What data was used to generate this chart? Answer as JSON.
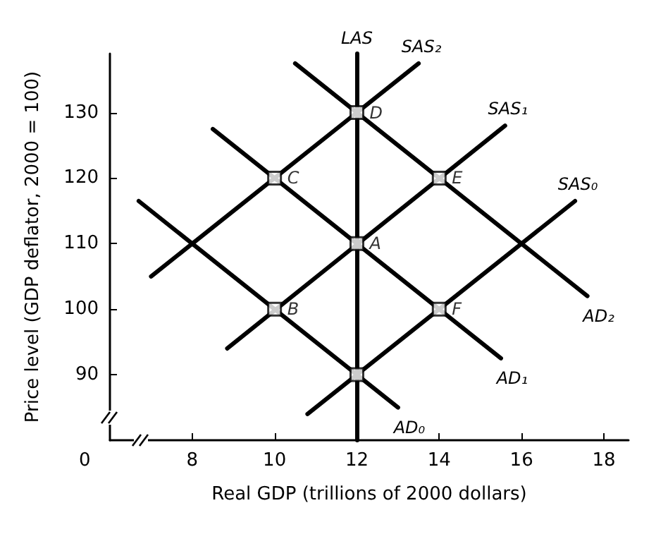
{
  "chart_data": {
    "type": "line",
    "xlabel": "Real GDP (trillions of 2000 dollars)",
    "ylabel": "Price level (GDP deflator, 2000 = 100)",
    "xlim": [
      6,
      18.6
    ],
    "xticks": [
      8,
      10,
      12,
      14,
      16,
      18
    ],
    "ylim": [
      80,
      139
    ],
    "yticks": [
      90,
      100,
      110,
      120,
      130
    ],
    "ref_lines": [
      {
        "axis": "x",
        "value": 12,
        "label": "LAS",
        "color": "#000000",
        "line_style": "solid"
      }
    ],
    "grid": false,
    "legend": false,
    "marker": "none",
    "line_style": "solid",
    "series": [
      {
        "name": "SAS₂",
        "color": "#000000",
        "x": [
          7,
          13.5
        ],
        "values": [
          105,
          137.5
        ]
      },
      {
        "name": "SAS₁",
        "color": "#000000",
        "x": [
          8.85,
          15.6
        ],
        "values": [
          94,
          128
        ]
      },
      {
        "name": "SAS₀",
        "color": "#000000",
        "x": [
          10.8,
          17.3
        ],
        "values": [
          84,
          116.5
        ]
      },
      {
        "name": "AD₂",
        "color": "#000000",
        "x": [
          10.5,
          17.6
        ],
        "values": [
          137.5,
          102
        ]
      },
      {
        "name": "AD₁",
        "color": "#000000",
        "x": [
          8.5,
          15.5
        ],
        "values": [
          127.5,
          92.5
        ]
      },
      {
        "name": "AD₀",
        "color": "#000000",
        "x": [
          6.7,
          13
        ],
        "values": [
          116.5,
          85
        ]
      },
      {
        "type": "scatter",
        "marker": "square",
        "color": "#000000",
        "x": [
          10,
          12,
          10,
          12,
          14,
          14,
          12
        ],
        "values": [
          100,
          110,
          120,
          130,
          120,
          100,
          90
        ]
      }
    ],
    "annotations": [
      "0",
      {
        "text": "A",
        "x": 12,
        "y": 110
      },
      {
        "text": "B",
        "x": 10,
        "y": 100
      },
      {
        "text": "C",
        "x": 10,
        "y": 120
      },
      {
        "text": "D",
        "x": 12,
        "y": 130
      },
      {
        "text": "E",
        "x": 14,
        "y": 120
      },
      {
        "text": "F",
        "x": 14,
        "y": 100
      }
    ]
  }
}
